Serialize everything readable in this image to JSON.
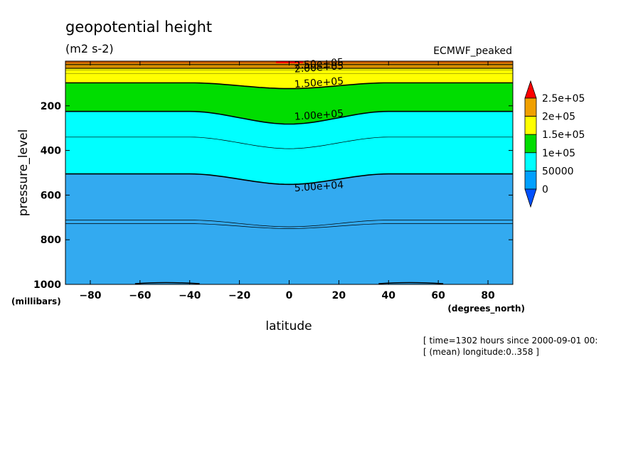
{
  "chart_data": {
    "type": "contour",
    "title": "geopotential height",
    "units": "(m2 s-2)",
    "dataset": "ECMWF_peaked",
    "xlabel": "latitude",
    "x_unit": "(degrees_north)",
    "ylabel": "pressure_level",
    "y_unit": "(millibars)",
    "xlim": [
      -90,
      90
    ],
    "ylim": [
      1000,
      0
    ],
    "y_inverted": true,
    "x_ticks": [
      -80,
      -60,
      -40,
      -20,
      0,
      20,
      40,
      60,
      80
    ],
    "y_ticks": [
      200,
      400,
      600,
      800,
      1000
    ],
    "contour_labels": [
      "2.50e+05",
      "2.00e+05",
      "1.50e+05",
      "1.00e+05",
      "5.00e+04"
    ],
    "contour_label_positions": [
      {
        "label": "2.50e+05",
        "lat": 12,
        "p": 10
      },
      {
        "label": "2.00e+05",
        "lat": 12,
        "p": 27
      },
      {
        "label": "1.50e+05",
        "lat": 12,
        "p": 95
      },
      {
        "label": "1.00e+05",
        "lat": 12,
        "p": 240
      },
      {
        "label": "5.00e+04",
        "lat": 12,
        "p": 560
      }
    ],
    "contour_levels": [
      {
        "value": 250000,
        "p_edge": 15,
        "p_mid": 15
      },
      {
        "value": 200000,
        "p_edge": 32,
        "p_mid": 32
      },
      {
        "value": 150000,
        "p_edge": 97,
        "p_mid": 123
      },
      {
        "value": 100000,
        "p_edge": 225,
        "p_mid": 282
      },
      {
        "value": 50000,
        "p_edge": 505,
        "p_mid": 552
      }
    ],
    "thin_contours": [
      {
        "p_edge": 340,
        "p_mid": 392
      },
      {
        "p_edge": 712,
        "p_mid": 742
      },
      {
        "p_edge": 728,
        "p_mid": 750
      }
    ],
    "legend": {
      "position": "right",
      "labels": [
        "2.5e+05",
        "2e+05",
        "1.5e+05",
        "1e+05",
        "50000",
        "0"
      ],
      "colors": [
        "#f0a000",
        "#ffff00",
        "#00dd00",
        "#00ffff",
        "#00a0ff"
      ],
      "over_color": "#ff0000",
      "under_color": "#0050ff"
    },
    "fill_colors": {
      "above_250000": "#f0a000",
      "200000_250000": "#f0a000",
      "150000_200000": "#ffff00",
      "100000_150000": "#00dd00",
      "50000_100000": "#00ffff",
      "0_50000": "#33aaf0"
    }
  },
  "annotations": {
    "time": "[ time=1302 hours since 2000-09-01 00:",
    "longitude": "[ (mean) longitude:0..358 ]"
  }
}
